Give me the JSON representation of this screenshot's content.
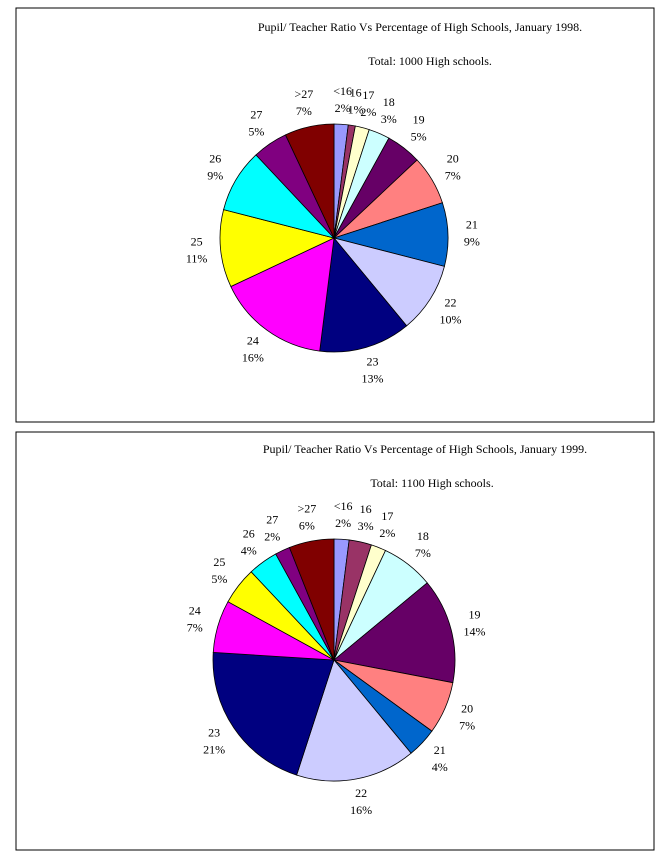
{
  "chart_data": [
    {
      "type": "pie",
      "title": "Pupil/ Teacher Ratio Vs Percentage of High Schools, January 1998.",
      "subtitle": "Total: 1000 High schools.",
      "categories": [
        "<16",
        "16",
        "17",
        "18",
        "19",
        "20",
        "21",
        "22",
        "23",
        "24",
        "25",
        "26",
        "27",
        ">27"
      ],
      "values": [
        2,
        1,
        2,
        3,
        5,
        7,
        9,
        10,
        13,
        16,
        11,
        9,
        5,
        7
      ],
      "value_labels": [
        "2%",
        "1%",
        "2%",
        "3%",
        "5%",
        "7%",
        "9%",
        "10%",
        "13%",
        "16%",
        "11%",
        "9%",
        "5%",
        "7%"
      ],
      "colors": [
        "#9999ff",
        "#993366",
        "#ffffcc",
        "#ccffff",
        "#660066",
        "#ff8080",
        "#0066cc",
        "#ccccff",
        "#000080",
        "#ff00ff",
        "#ffff00",
        "#00ffff",
        "#800080",
        "#800000"
      ]
    },
    {
      "type": "pie",
      "title": "Pupil/ Teacher Ratio Vs Percentage of High Schools, January 1999.",
      "subtitle": "Total: 1100 High schools.",
      "categories": [
        "<16",
        "16",
        "17",
        "18",
        "19",
        "20",
        "21",
        "22",
        "23",
        "24",
        "25",
        "26",
        "27",
        ">27"
      ],
      "values": [
        2,
        3,
        2,
        7,
        14,
        7,
        4,
        16,
        21,
        7,
        5,
        4,
        2,
        6
      ],
      "value_labels": [
        "2%",
        "3%",
        "2%",
        "7%",
        "14%",
        "7%",
        "4%",
        "16%",
        "21%",
        "7%",
        "5%",
        "4%",
        "2%",
        "6%"
      ],
      "colors": [
        "#9999ff",
        "#993366",
        "#ffffcc",
        "#ccffff",
        "#660066",
        "#ff8080",
        "#0066cc",
        "#ccccff",
        "#000080",
        "#ff00ff",
        "#ffff00",
        "#00ffff",
        "#800080",
        "#800000"
      ]
    }
  ]
}
